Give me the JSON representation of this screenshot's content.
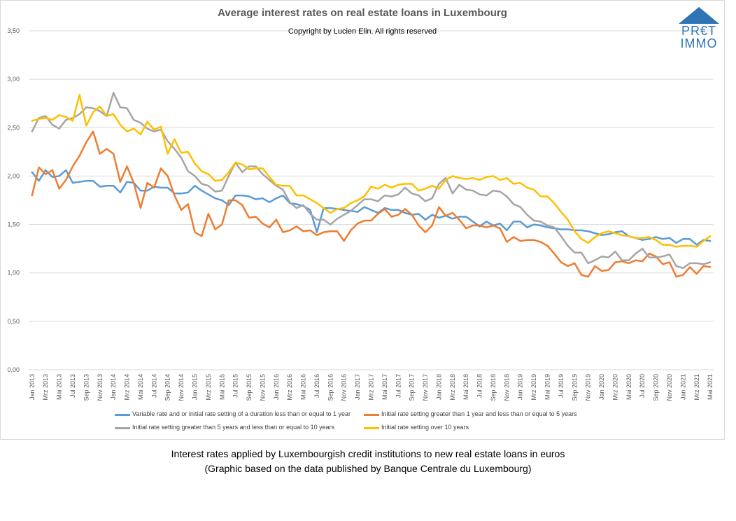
{
  "title": "Average interest rates on real estate loans in Luxembourg",
  "copyright": "Copyright by Lucien Elin. All rights reserved",
  "logo": {
    "line1": "PR€T",
    "line2": "IMMO",
    "color": "#2e75b6"
  },
  "captions": [
    "Interest rates applied by Luxembourgish credit institutions to new real estate loans in euros",
    "(Graphic based on the data published by Banque Centrale du Luxembourg)"
  ],
  "chart_data": {
    "type": "line",
    "ylim": [
      0,
      3.5
    ],
    "yticks": [
      "0,00",
      "0,50",
      "1,00",
      "1,50",
      "2,00",
      "2,50",
      "3,00",
      "3,50"
    ],
    "grid": true,
    "legend_position": "bottom",
    "x": [
      "Jan 2013",
      "Feb 2013",
      "Mrz 2013",
      "Apr 2013",
      "Mai 2013",
      "Jun 2013",
      "Jul 2013",
      "Aug 2013",
      "Sep 2013",
      "Okt 2013",
      "Nov 2013",
      "Dez 2013",
      "Jan 2014",
      "Feb 2014",
      "Mrz 2014",
      "Apr 2014",
      "Mai 2014",
      "Jun 2014",
      "Jul 2014",
      "Aug 2014",
      "Sep 2014",
      "Okt 2014",
      "Nov 2014",
      "Dez 2014",
      "Jan 2015",
      "Feb 2015",
      "Mrz 2015",
      "Apr 2015",
      "Mai 2015",
      "Jun 2015",
      "Jul 2015",
      "Aug 2015",
      "Sep 2015",
      "Okt 2015",
      "Nov 2015",
      "Dez 2015",
      "Jan 2016",
      "Feb 2016",
      "Mrz 2016",
      "Apr 2016",
      "Mai 2016",
      "Jun 2016",
      "Jul 2016",
      "Aug 2016",
      "Sep 2016",
      "Okt 2016",
      "Nov 2016",
      "Dez 2016",
      "Jan 2017",
      "Feb 2017",
      "Mrz 2017",
      "Apr 2017",
      "Mai 2017",
      "Jun 2017",
      "Jul 2017",
      "Aug 2017",
      "Sep 2017",
      "Okt 2017",
      "Nov 2017",
      "Dez 2017",
      "Jan 2018",
      "Feb 2018",
      "Mrz 2018",
      "Apr 2018",
      "Mai 2018",
      "Jun 2018",
      "Jul 2018",
      "Aug 2018",
      "Sep 2018",
      "Okt 2018",
      "Nov 2018",
      "Dez 2018",
      "Jan 2019",
      "Feb 2019",
      "Mrz 2019",
      "Apr 2019",
      "Mai 2019",
      "Jun 2019",
      "Jul 2019",
      "Aug 2019",
      "Sep 2019",
      "Okt 2019",
      "Nov 2019",
      "Dez 2019",
      "Jan 2020",
      "Feb 2020",
      "Mrz 2020",
      "Apr 2020",
      "Mai 2020",
      "Jun 2020",
      "Jul 2020",
      "Aug 2020",
      "Sep 2020",
      "Okt 2020",
      "Nov 2020",
      "Dez 2020",
      "Jan 2021",
      "Feb 2021",
      "Mrz 2021",
      "Apr 2021",
      "Mai 2021"
    ],
    "xtick_labels": [
      "Jan 2013",
      "Mrz 2013",
      "Mai 2013",
      "Jul 2013",
      "Sep 2013",
      "Nov 2013",
      "Jan 2014",
      "Mrz 2014",
      "Mai 2014",
      "Jul 2014",
      "Sep 2014",
      "Nov 2014",
      "Jan 2015",
      "Mrz 2015",
      "Mai 2015",
      "Jul 2015",
      "Sep 2015",
      "Nov 2015",
      "Jan 2016",
      "Mrz 2016",
      "Mai 2016",
      "Jul 2016",
      "Sep 2016",
      "Nov 2016",
      "Jan 2017",
      "Mrz 2017",
      "Mai 2017",
      "Jul 2017",
      "Sep 2017",
      "Nov 2017",
      "Jan 2018",
      "Mrz 2018",
      "Mai 2018",
      "Jul 2018",
      "Sep 2018",
      "Nov 2018",
      "Jan 2019",
      "Mrz 2019",
      "Mai 2019",
      "Jul 2019",
      "Sep 2019",
      "Nov 2019",
      "Jan 2020",
      "Mrz 2020",
      "Mai 2020",
      "Jul 2020",
      "Sep 2020",
      "Nov 2020",
      "Jan 2021",
      "Mrz 2021",
      "Mai 2021"
    ],
    "series": [
      {
        "name": "Variable rate and or initial rate setting of a duration less than or equal to 1 year",
        "color": "#5b9bd5",
        "values": [
          2.04,
          1.95,
          2.06,
          1.99,
          2.0,
          2.06,
          1.93,
          1.94,
          1.95,
          1.95,
          1.89,
          1.9,
          1.9,
          1.83,
          1.94,
          1.93,
          1.85,
          1.85,
          1.89,
          1.88,
          1.88,
          1.82,
          1.82,
          1.83,
          1.9,
          1.85,
          1.81,
          1.77,
          1.75,
          1.7,
          1.8,
          1.8,
          1.79,
          1.76,
          1.77,
          1.73,
          1.77,
          1.8,
          1.72,
          1.71,
          1.69,
          1.65,
          1.42,
          1.67,
          1.67,
          1.66,
          1.65,
          1.64,
          1.63,
          1.68,
          1.65,
          1.62,
          1.67,
          1.65,
          1.65,
          1.62,
          1.6,
          1.61,
          1.55,
          1.6,
          1.57,
          1.59,
          1.56,
          1.58,
          1.58,
          1.53,
          1.48,
          1.53,
          1.49,
          1.51,
          1.44,
          1.53,
          1.53,
          1.47,
          1.5,
          1.49,
          1.47,
          1.46,
          1.45,
          1.45,
          1.44,
          1.44,
          1.43,
          1.41,
          1.39,
          1.4,
          1.42,
          1.43,
          1.38,
          1.36,
          1.34,
          1.35,
          1.37,
          1.35,
          1.36,
          1.31,
          1.35,
          1.35,
          1.29,
          1.34,
          1.33
        ]
      },
      {
        "name": "Initial rate setting greater than 1 year and less than or equal to 5 years",
        "color": "#ed7d31",
        "values": [
          1.8,
          2.09,
          2.02,
          2.06,
          1.87,
          1.96,
          2.1,
          2.21,
          2.35,
          2.46,
          2.23,
          2.28,
          2.23,
          1.94,
          2.1,
          1.93,
          1.67,
          1.93,
          1.88,
          2.08,
          2.0,
          1.8,
          1.65,
          1.71,
          1.42,
          1.38,
          1.61,
          1.45,
          1.5,
          1.75,
          1.75,
          1.7,
          1.57,
          1.58,
          1.51,
          1.47,
          1.55,
          1.42,
          1.44,
          1.48,
          1.43,
          1.44,
          1.39,
          1.42,
          1.43,
          1.43,
          1.33,
          1.44,
          1.51,
          1.54,
          1.54,
          1.61,
          1.66,
          1.58,
          1.6,
          1.66,
          1.6,
          1.49,
          1.42,
          1.49,
          1.68,
          1.59,
          1.62,
          1.55,
          1.46,
          1.49,
          1.49,
          1.47,
          1.49,
          1.46,
          1.32,
          1.37,
          1.33,
          1.34,
          1.34,
          1.32,
          1.28,
          1.2,
          1.11,
          1.07,
          1.1,
          0.98,
          0.96,
          1.07,
          1.02,
          1.03,
          1.11,
          1.12,
          1.1,
          1.13,
          1.12,
          1.2,
          1.17,
          1.09,
          1.11,
          0.96,
          0.98,
          1.06,
          0.99,
          1.07,
          1.06
        ]
      },
      {
        "name": "Initial rate setting greater than 5 years and less than or equal to 10 years",
        "color": "#a5a5a5",
        "values": [
          2.46,
          2.6,
          2.62,
          2.53,
          2.49,
          2.58,
          2.6,
          2.64,
          2.71,
          2.7,
          2.67,
          2.62,
          2.86,
          2.71,
          2.7,
          2.58,
          2.55,
          2.49,
          2.46,
          2.48,
          2.36,
          2.28,
          2.19,
          2.05,
          2.0,
          1.92,
          1.9,
          1.84,
          1.85,
          2.0,
          2.14,
          2.04,
          2.1,
          2.1,
          2.02,
          1.96,
          1.9,
          1.86,
          1.73,
          1.67,
          1.7,
          1.61,
          1.55,
          1.55,
          1.5,
          1.56,
          1.6,
          1.64,
          1.7,
          1.76,
          1.76,
          1.74,
          1.8,
          1.79,
          1.81,
          1.88,
          1.82,
          1.8,
          1.74,
          1.77,
          1.92,
          1.98,
          1.82,
          1.91,
          1.86,
          1.85,
          1.81,
          1.8,
          1.85,
          1.84,
          1.79,
          1.71,
          1.68,
          1.6,
          1.54,
          1.53,
          1.49,
          1.47,
          1.38,
          1.28,
          1.21,
          1.21,
          1.1,
          1.13,
          1.17,
          1.16,
          1.22,
          1.13,
          1.13,
          1.2,
          1.25,
          1.16,
          1.16,
          1.17,
          1.19,
          1.07,
          1.05,
          1.1,
          1.1,
          1.09,
          1.11
        ]
      },
      {
        "name": "Initial rate setting over 10 years",
        "color": "#ffc000",
        "values": [
          2.57,
          2.59,
          2.6,
          2.58,
          2.63,
          2.61,
          2.57,
          2.84,
          2.52,
          2.66,
          2.72,
          2.62,
          2.64,
          2.53,
          2.46,
          2.49,
          2.43,
          2.56,
          2.48,
          2.51,
          2.23,
          2.38,
          2.24,
          2.25,
          2.13,
          2.05,
          2.02,
          1.95,
          1.96,
          2.04,
          2.14,
          2.12,
          2.07,
          2.08,
          2.08,
          1.99,
          1.91,
          1.9,
          1.9,
          1.8,
          1.8,
          1.76,
          1.72,
          1.67,
          1.62,
          1.66,
          1.67,
          1.72,
          1.75,
          1.79,
          1.89,
          1.87,
          1.91,
          1.88,
          1.91,
          1.92,
          1.92,
          1.85,
          1.87,
          1.9,
          1.87,
          1.96,
          2.0,
          1.98,
          1.97,
          1.98,
          1.96,
          1.99,
          2.0,
          1.96,
          1.98,
          1.92,
          1.93,
          1.88,
          1.86,
          1.79,
          1.79,
          1.72,
          1.63,
          1.55,
          1.43,
          1.35,
          1.31,
          1.37,
          1.41,
          1.43,
          1.41,
          1.39,
          1.38,
          1.36,
          1.36,
          1.37,
          1.34,
          1.29,
          1.29,
          1.27,
          1.28,
          1.28,
          1.27,
          1.33,
          1.38
        ]
      }
    ]
  }
}
